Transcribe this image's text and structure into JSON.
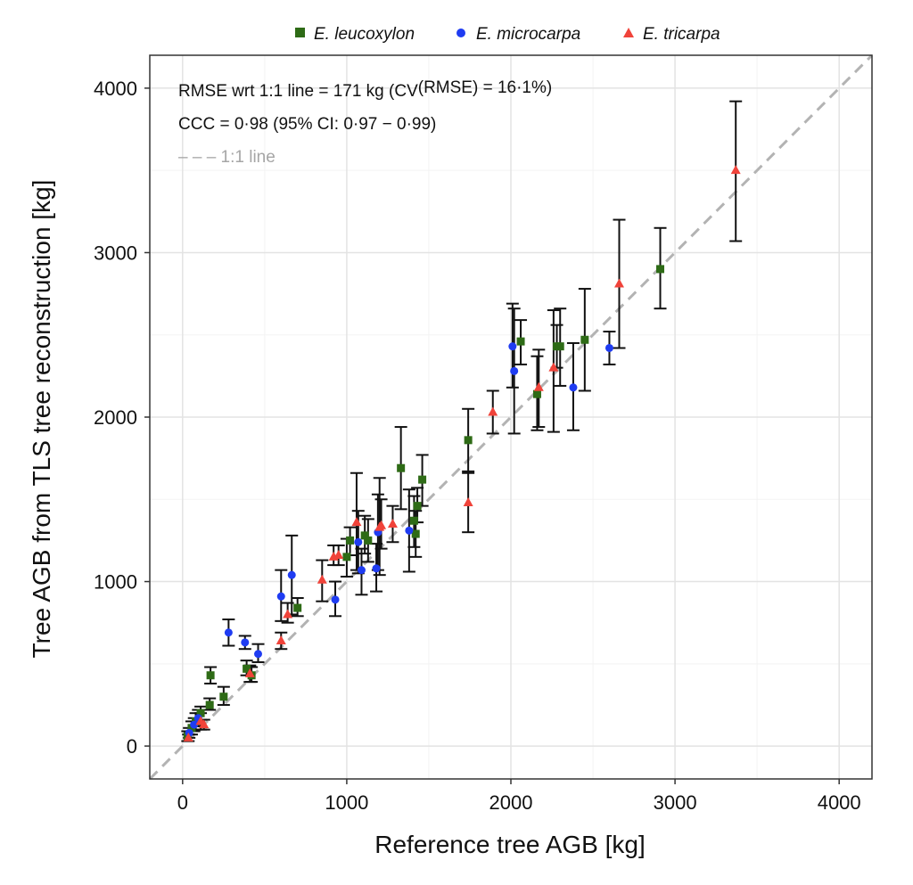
{
  "chart_data": {
    "type": "scatter",
    "title": "",
    "xlabel": "Reference tree AGB [kg]",
    "ylabel": "Tree AGB from TLS tree reconstruction [kg]",
    "xlim": [
      -200,
      4200
    ],
    "ylim": [
      -200,
      4200
    ],
    "x_ticks": [
      0,
      1000,
      2000,
      3000,
      4000
    ],
    "y_ticks": [
      0,
      1000,
      2000,
      3000,
      4000
    ],
    "x_tick_labels": [
      "0",
      "1000",
      "2000",
      "3000",
      "4000"
    ],
    "y_tick_labels": [
      "0",
      "1000",
      "2000",
      "3000",
      "4000"
    ],
    "grid": true,
    "legend_position": "top",
    "annotations": [
      "RMSE wrt 1:1 line = 171 kg (CV",
      "(RMSE) = 16·1%)",
      "CCC = 0·98 (95% CI: 0·97 − 0·99)"
    ],
    "reference_line": {
      "label": "1:1 line",
      "legend_text": "– – – 1:1 line",
      "slope": 1,
      "intercept": 0,
      "color": "#b3b3b3"
    },
    "series": [
      {
        "name": "E. leucoxylon",
        "marker": "square",
        "color": "#2e6b16",
        "points": [
          {
            "x": 30,
            "y": 60,
            "lo": 30,
            "hi": 90
          },
          {
            "x": 55,
            "y": 110,
            "lo": 70,
            "hi": 150
          },
          {
            "x": 80,
            "y": 150,
            "lo": 100,
            "hi": 200
          },
          {
            "x": 110,
            "y": 200,
            "lo": 160,
            "hi": 240
          },
          {
            "x": 165,
            "y": 250,
            "lo": 220,
            "hi": 290
          },
          {
            "x": 170,
            "y": 430,
            "lo": 380,
            "hi": 480
          },
          {
            "x": 250,
            "y": 300,
            "lo": 250,
            "hi": 360
          },
          {
            "x": 390,
            "y": 470,
            "lo": 430,
            "hi": 520
          },
          {
            "x": 420,
            "y": 430,
            "lo": 390,
            "hi": 480
          },
          {
            "x": 700,
            "y": 840,
            "lo": 790,
            "hi": 900
          },
          {
            "x": 1000,
            "y": 1150,
            "lo": 1030,
            "hi": 1260
          },
          {
            "x": 1020,
            "y": 1250,
            "lo": 1160,
            "hi": 1330
          },
          {
            "x": 1110,
            "y": 1280,
            "lo": 1170,
            "hi": 1400
          },
          {
            "x": 1130,
            "y": 1250,
            "lo": 1120,
            "hi": 1380
          },
          {
            "x": 1330,
            "y": 1690,
            "lo": 1440,
            "hi": 1940
          },
          {
            "x": 1410,
            "y": 1370,
            "lo": 1210,
            "hi": 1520
          },
          {
            "x": 1420,
            "y": 1290,
            "lo": 1150,
            "hi": 1430
          },
          {
            "x": 1430,
            "y": 1460,
            "lo": 1360,
            "hi": 1570
          },
          {
            "x": 1460,
            "y": 1620,
            "lo": 1460,
            "hi": 1770
          },
          {
            "x": 1740,
            "y": 1860,
            "lo": 1660,
            "hi": 2050
          },
          {
            "x": 2060,
            "y": 2460,
            "lo": 2320,
            "hi": 2590
          },
          {
            "x": 2160,
            "y": 2140,
            "lo": 1920,
            "hi": 2370
          },
          {
            "x": 2280,
            "y": 2430,
            "lo": 2300,
            "hi": 2560
          },
          {
            "x": 2300,
            "y": 2430,
            "lo": 2190,
            "hi": 2660
          },
          {
            "x": 2450,
            "y": 2470,
            "lo": 2160,
            "hi": 2780
          },
          {
            "x": 2910,
            "y": 2900,
            "lo": 2660,
            "hi": 3150
          }
        ]
      },
      {
        "name": "E. microcarpa",
        "marker": "circle",
        "color": "#1f3cf2",
        "points": [
          {
            "x": 40,
            "y": 80,
            "lo": 50,
            "hi": 110
          },
          {
            "x": 70,
            "y": 130,
            "lo": 90,
            "hi": 170
          },
          {
            "x": 95,
            "y": 170,
            "lo": 120,
            "hi": 220
          },
          {
            "x": 280,
            "y": 690,
            "lo": 610,
            "hi": 770
          },
          {
            "x": 380,
            "y": 630,
            "lo": 590,
            "hi": 670
          },
          {
            "x": 460,
            "y": 560,
            "lo": 510,
            "hi": 620
          },
          {
            "x": 600,
            "y": 910,
            "lo": 760,
            "hi": 1070
          },
          {
            "x": 665,
            "y": 1040,
            "lo": 800,
            "hi": 1280
          },
          {
            "x": 930,
            "y": 890,
            "lo": 790,
            "hi": 1000
          },
          {
            "x": 1070,
            "y": 1240,
            "lo": 1050,
            "hi": 1430
          },
          {
            "x": 1090,
            "y": 1070,
            "lo": 920,
            "hi": 1200
          },
          {
            "x": 1180,
            "y": 1080,
            "lo": 940,
            "hi": 1230
          },
          {
            "x": 1190,
            "y": 1300,
            "lo": 1070,
            "hi": 1530
          },
          {
            "x": 1380,
            "y": 1310,
            "lo": 1060,
            "hi": 1560
          },
          {
            "x": 2010,
            "y": 2430,
            "lo": 2180,
            "hi": 2690
          },
          {
            "x": 2020,
            "y": 2280,
            "lo": 1900,
            "hi": 2660
          },
          {
            "x": 2380,
            "y": 2180,
            "lo": 1920,
            "hi": 2450
          },
          {
            "x": 2600,
            "y": 2420,
            "lo": 2320,
            "hi": 2520
          }
        ]
      },
      {
        "name": "E. tricarpa",
        "marker": "triangle",
        "color": "#f0433a",
        "points": [
          {
            "x": 35,
            "y": 50,
            "lo": 30,
            "hi": 70
          },
          {
            "x": 110,
            "y": 150,
            "lo": 100,
            "hi": 200
          },
          {
            "x": 130,
            "y": 130,
            "lo": 100,
            "hi": 160
          },
          {
            "x": 410,
            "y": 440,
            "lo": 390,
            "hi": 490
          },
          {
            "x": 600,
            "y": 640,
            "lo": 590,
            "hi": 690
          },
          {
            "x": 640,
            "y": 800,
            "lo": 750,
            "hi": 870
          },
          {
            "x": 850,
            "y": 1010,
            "lo": 880,
            "hi": 1130
          },
          {
            "x": 920,
            "y": 1150,
            "lo": 1100,
            "hi": 1220
          },
          {
            "x": 950,
            "y": 1160,
            "lo": 1100,
            "hi": 1220
          },
          {
            "x": 1060,
            "y": 1360,
            "lo": 1070,
            "hi": 1660
          },
          {
            "x": 1200,
            "y": 1330,
            "lo": 1040,
            "hi": 1630
          },
          {
            "x": 1210,
            "y": 1340,
            "lo": 1200,
            "hi": 1500
          },
          {
            "x": 1280,
            "y": 1350,
            "lo": 1240,
            "hi": 1460
          },
          {
            "x": 1740,
            "y": 1480,
            "lo": 1300,
            "hi": 1670
          },
          {
            "x": 1890,
            "y": 2030,
            "lo": 1900,
            "hi": 2160
          },
          {
            "x": 2170,
            "y": 2180,
            "lo": 1940,
            "hi": 2410
          },
          {
            "x": 2260,
            "y": 2300,
            "lo": 1910,
            "hi": 2650
          },
          {
            "x": 2660,
            "y": 2810,
            "lo": 2420,
            "hi": 3200
          },
          {
            "x": 3370,
            "y": 3500,
            "lo": 3070,
            "hi": 3920
          }
        ]
      }
    ]
  }
}
